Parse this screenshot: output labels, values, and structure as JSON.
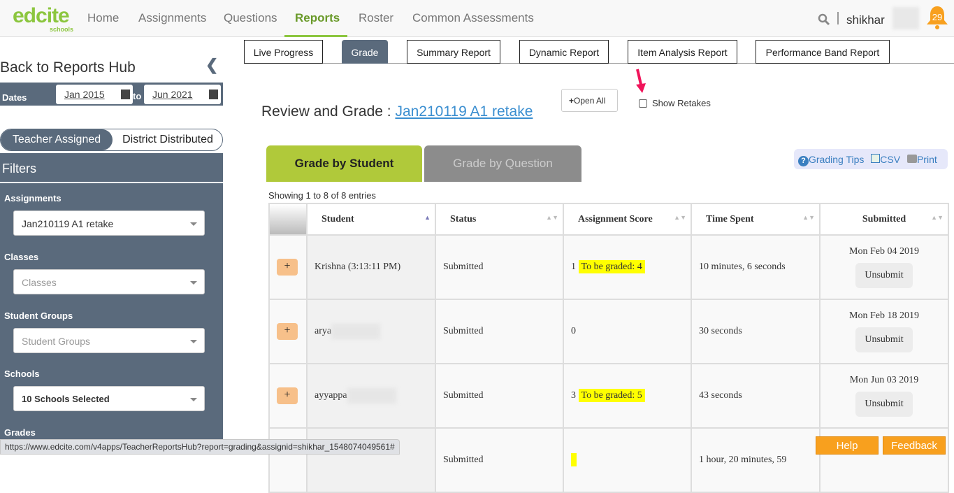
{
  "nav": {
    "logo": "edcite",
    "logo_sub": "schools",
    "items": [
      "Home",
      "Assignments",
      "Questions",
      "Reports",
      "Roster",
      "Common Assessments"
    ],
    "active": "Reports",
    "user": "shikhar",
    "notifications": "29"
  },
  "sidebar": {
    "back": "Back to Reports Hub",
    "dates_label": "Dates",
    "date_from": "Jan 2015",
    "date_to": "Jun 2021",
    "to": "to",
    "toggle": [
      "Teacher Assigned",
      "District Distributed"
    ],
    "filters_title": "Filters",
    "filters": [
      {
        "label": "Assignments",
        "value": "Jan210119 A1 retake"
      },
      {
        "label": "Classes",
        "placeholder": "Classes"
      },
      {
        "label": "Student Groups",
        "placeholder": "Student Groups"
      },
      {
        "label": "Schools",
        "value": "10 Schools Selected"
      },
      {
        "label": "Grades"
      }
    ]
  },
  "report_tabs": [
    "Live Progress",
    "Grade",
    "Summary Report",
    "Dynamic Report",
    "Item Analysis Report",
    "Performance Band Report"
  ],
  "main": {
    "title_prefix": "Review and Grade : ",
    "title_link": "Jan210119 A1 retake",
    "open_all": "Open All",
    "show_retakes": "Show Retakes",
    "grade_tabs": [
      "Grade by Student",
      "Grade by Question"
    ],
    "tools": {
      "tips": "Grading Tips",
      "csv": "CSV",
      "print": "Print"
    },
    "showing": "Showing 1 to 8 of 8 entries",
    "columns": [
      "Student",
      "Status",
      "Assignment Score",
      "Time Spent",
      "Submitted"
    ],
    "rows": [
      {
        "student": "Krishna (3:13:11 PM)",
        "status": "Submitted",
        "score": "1",
        "tbg": "To be graded: 4",
        "time": "10 minutes, 6 seconds",
        "submitted": "Mon Feb 04 2019",
        "action": "Unsubmit"
      },
      {
        "student": "arya",
        "status": "Submitted",
        "score": "0",
        "tbg": "",
        "time": "30 seconds",
        "submitted": "Mon Feb 18 2019",
        "action": "Unsubmit"
      },
      {
        "student": "ayyappa",
        "status": "Submitted",
        "score": "3",
        "tbg": "To be graded: 5",
        "time": "43 seconds",
        "submitted": "Mon Jun 03 2019",
        "action": "Unsubmit"
      },
      {
        "student": "",
        "status": "Submitted",
        "score": "",
        "tbg": " ",
        "time": "1 hour, 20 minutes, 59",
        "submitted": "",
        "action": ""
      }
    ]
  },
  "status_url": "https://www.edcite.com/v4apps/TeacherReportsHub?report=grading&assignid=shikhar_1548074049561#",
  "help": "Help",
  "feedback": "Feedback",
  "colors": {
    "accent": "#8cc63f",
    "sidebar": "#5a6a7c",
    "tab_active": "#b0c93a",
    "orange": "#f8a01e"
  }
}
